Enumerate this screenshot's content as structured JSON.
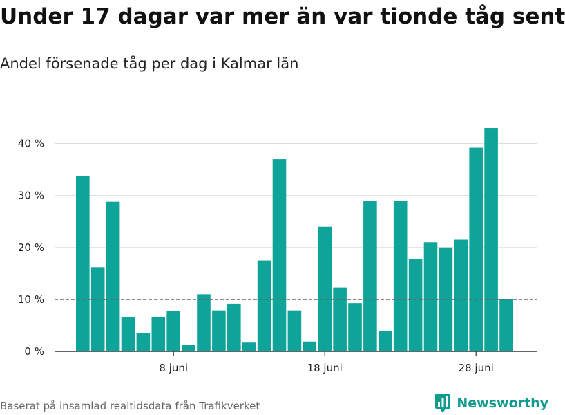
{
  "title": "Under 17 dagar var mer än var tionde tåg sent",
  "subtitle": "Andel försenade tåg per dag i Kalmar län",
  "source": "Baserat på insamlad realtidsdata från Trafikverket",
  "brand": "Newsworthy",
  "colors": {
    "bar": "#0ea49a",
    "reference": "#666666",
    "grid": "#dddddd",
    "axis": "#333333"
  },
  "chart_data": {
    "type": "bar",
    "title": "Under 17 dagar var mer än var tionde tåg sent",
    "subtitle": "Andel försenade tåg per dag i Kalmar län",
    "xlabel": "",
    "ylabel": "",
    "x": [
      "2 juni",
      "3 juni",
      "4 juni",
      "5 juni",
      "6 juni",
      "7 juni",
      "8 juni",
      "9 juni",
      "10 juni",
      "11 juni",
      "12 juni",
      "13 juni",
      "14 juni",
      "15 juni",
      "16 juni",
      "17 juni",
      "18 juni",
      "19 juni",
      "20 juni",
      "21 juni",
      "22 juni",
      "23 juni",
      "24 juni",
      "25 juni",
      "26 juni",
      "27 juni",
      "28 juni",
      "29 juni",
      "30 juni"
    ],
    "values": [
      33.8,
      16.2,
      28.8,
      6.6,
      3.5,
      6.6,
      7.8,
      1.2,
      11.0,
      7.9,
      9.2,
      1.7,
      17.5,
      37.0,
      7.9,
      1.9,
      24.0,
      12.3,
      9.3,
      29.0,
      4.0,
      29.0,
      17.8,
      21.0,
      20.0,
      21.5,
      39.2,
      43.0,
      10.0
    ],
    "ylim": [
      0,
      45
    ],
    "yticks": [
      0,
      10,
      20,
      30,
      40
    ],
    "ytick_labels": [
      "0 %",
      "10 %",
      "20 %",
      "30 %",
      "40 %"
    ],
    "xticks": [
      {
        "index": 6,
        "label": "8 juni"
      },
      {
        "index": 16,
        "label": "18 juni"
      },
      {
        "index": 26,
        "label": "28 juni"
      }
    ],
    "reference_line": 10,
    "grid": "horizontal",
    "legend": "none"
  }
}
